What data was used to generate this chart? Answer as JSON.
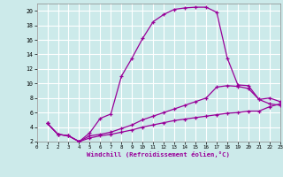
{
  "xlabel": "Windchill (Refroidissement éolien,°C)",
  "bg_color": "#cceaea",
  "line_color": "#990099",
  "grid_color": "#ffffff",
  "line1_x": [
    1,
    2,
    3,
    4,
    5,
    6,
    7,
    8,
    9,
    10,
    11,
    12,
    13,
    14,
    15,
    16,
    17,
    18,
    19,
    20,
    21,
    22,
    23
  ],
  "line1_y": [
    4.5,
    3.0,
    2.8,
    2.0,
    3.2,
    5.2,
    5.8,
    11.0,
    13.5,
    16.2,
    18.5,
    19.5,
    20.2,
    20.4,
    20.5,
    20.5,
    19.8,
    13.5,
    9.8,
    9.7,
    7.8,
    7.2,
    7.0
  ],
  "line2_x": [
    1,
    2,
    3,
    4,
    5,
    6,
    7,
    8,
    9,
    10,
    11,
    12,
    13,
    14,
    15,
    16,
    17,
    18,
    19,
    20,
    21,
    22,
    23
  ],
  "line2_y": [
    4.5,
    3.0,
    2.8,
    2.0,
    2.8,
    3.0,
    3.3,
    3.8,
    4.3,
    5.0,
    5.5,
    6.0,
    6.5,
    7.0,
    7.5,
    8.0,
    9.5,
    9.7,
    9.6,
    9.3,
    7.8,
    8.0,
    7.5
  ],
  "line3_x": [
    1,
    2,
    3,
    4,
    5,
    6,
    7,
    8,
    9,
    10,
    11,
    12,
    13,
    14,
    15,
    16,
    17,
    18,
    19,
    20,
    21,
    22,
    23
  ],
  "line3_y": [
    4.5,
    3.0,
    2.8,
    2.0,
    2.5,
    2.8,
    3.0,
    3.3,
    3.6,
    4.0,
    4.3,
    4.6,
    4.9,
    5.1,
    5.3,
    5.5,
    5.7,
    5.9,
    6.0,
    6.2,
    6.2,
    6.8,
    7.2
  ],
  "xlim": [
    0,
    23
  ],
  "ylim": [
    2,
    21
  ],
  "xticks": [
    0,
    1,
    2,
    3,
    4,
    5,
    6,
    7,
    8,
    9,
    10,
    11,
    12,
    13,
    14,
    15,
    16,
    17,
    18,
    19,
    20,
    21,
    22,
    23
  ],
  "yticks": [
    2,
    4,
    6,
    8,
    10,
    12,
    14,
    16,
    18,
    20
  ],
  "ytick_labels": [
    "2",
    "4",
    "6",
    "8",
    "10",
    "12",
    "14",
    "16",
    "18",
    "20"
  ]
}
